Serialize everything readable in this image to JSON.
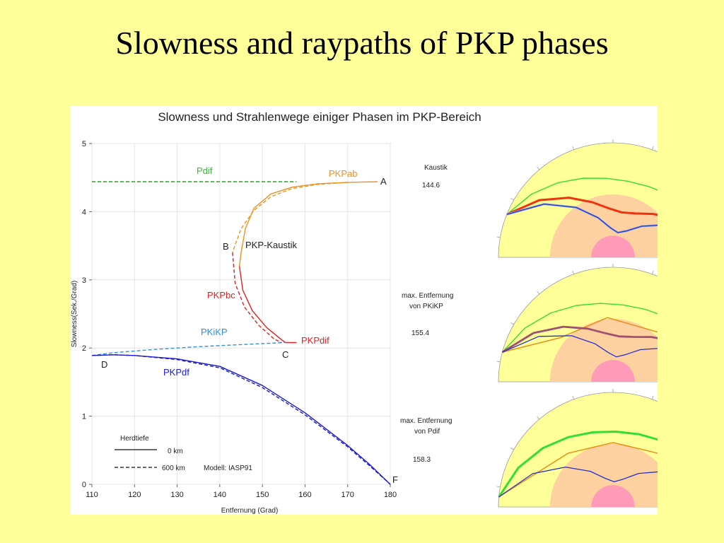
{
  "slide": {
    "title": "Slowness and raypaths of PKP phases"
  },
  "figure": {
    "title": "Slowness und Strahlenwege einiger Phasen im PKP-Bereich"
  },
  "chart_data": {
    "type": "line",
    "xlabel": "Entfernung (Grad)",
    "ylabel": "Slowness(Sek./Grad)",
    "xlim": [
      110,
      180
    ],
    "ylim": [
      0,
      5
    ],
    "x_ticks": [
      110,
      120,
      130,
      140,
      150,
      160,
      170,
      180
    ],
    "y_ticks": [
      0,
      1,
      2,
      3,
      4,
      5
    ],
    "grid": true,
    "series": [
      {
        "name": "Pdif",
        "color": "#2aa02a",
        "style": "dashed",
        "x": [
          110,
          158
        ],
        "y": [
          4.44,
          4.44
        ]
      },
      {
        "name": "PKPab",
        "color": "#f0901e",
        "style": "solid",
        "x": [
          177,
          170,
          163,
          157,
          152,
          148,
          146,
          145,
          144.6
        ],
        "y": [
          4.44,
          4.43,
          4.41,
          4.36,
          4.26,
          4.05,
          3.75,
          3.4,
          3.2
        ]
      },
      {
        "name": "PKPbc",
        "color": "#e22020",
        "style": "solid",
        "x": [
          144.6,
          145.4,
          147.6,
          151,
          154.5,
          155.4
        ],
        "y": [
          3.2,
          2.85,
          2.55,
          2.3,
          2.12,
          2.08
        ]
      },
      {
        "name": "PKPdif",
        "color": "#e22020",
        "style": "solid",
        "x": [
          155.4,
          158
        ],
        "y": [
          2.08,
          2.08
        ]
      },
      {
        "name": "PKiKP",
        "color": "#3090e0",
        "style": "dashed",
        "x": [
          110,
          115,
          125,
          135,
          145,
          155.4
        ],
        "y": [
          1.89,
          1.93,
          1.98,
          2.02,
          2.05,
          2.08
        ]
      },
      {
        "name": "PKPdf",
        "color": "#1a1ad0",
        "style": "solid",
        "x": [
          110,
          115,
          120,
          130,
          140,
          150,
          160,
          170,
          175,
          180
        ],
        "y": [
          1.89,
          1.9,
          1.89,
          1.84,
          1.73,
          1.45,
          1.05,
          0.57,
          0.3,
          0
        ]
      },
      {
        "name": "PKPab 600 km",
        "color": "#f0901e",
        "style": "dashed",
        "x": [
          170,
          163,
          157,
          152,
          148,
          145,
          143.5,
          143
        ],
        "y": [
          4.43,
          4.4,
          4.34,
          4.22,
          4.02,
          3.75,
          3.5,
          3.4
        ]
      },
      {
        "name": "PKPbc 600 km",
        "color": "#e22020",
        "style": "dashed",
        "x": [
          143,
          143.6,
          145.8,
          149.2,
          152.8,
          154.5
        ],
        "y": [
          3.4,
          2.95,
          2.6,
          2.33,
          2.13,
          2.08
        ]
      },
      {
        "name": "PKPdf 600 km",
        "color": "#1a1ad0",
        "style": "dashed",
        "x": [
          110,
          115,
          120,
          130,
          140,
          150,
          160,
          170,
          175,
          180
        ],
        "y": [
          1.89,
          1.9,
          1.89,
          1.83,
          1.71,
          1.42,
          1.02,
          0.55,
          0.28,
          0
        ]
      }
    ],
    "phase_labels": [
      "Pdif",
      "PKPab",
      "PKP-Kaustik",
      "PKPbc",
      "PKiKP",
      "PKPdif",
      "PKPdf"
    ],
    "point_labels": [
      "A",
      "B",
      "C",
      "D",
      "F"
    ],
    "legend": {
      "title": "Herdtiefe",
      "entries": [
        "0 km",
        "600 km"
      ],
      "model_note": "Modell: IASP91",
      "placement": "bottom-left"
    }
  },
  "raypath_panels": [
    {
      "title": "Kaustik",
      "distance_label": "144.6",
      "colors": {
        "outer": "#ffff99",
        "outer_core": "#ffd0a0",
        "inner_core": "#ff9ab8",
        "ray_green": "#33dd33",
        "ray_red": "#ee3311",
        "ray_blue": "#2233cc",
        "ray_orange": "#ee8811"
      }
    },
    {
      "title": "max. Entfernung von PKiKP",
      "title_lines": [
        "max. Entfernung",
        "von PKiKP"
      ],
      "distance_label": "155.4"
    },
    {
      "title": "max. Entfernung von Pdif",
      "title_lines": [
        "max. Entfernung",
        "von Pdif"
      ],
      "distance_label": "158.3"
    }
  ]
}
